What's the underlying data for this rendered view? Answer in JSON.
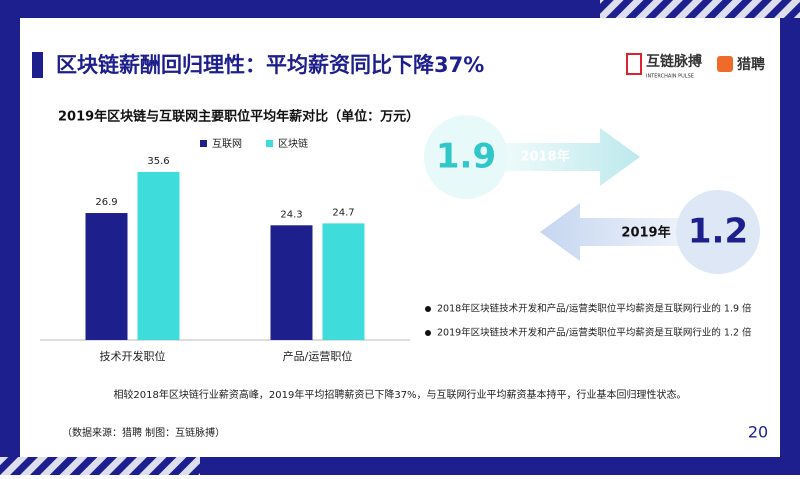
{
  "header": {
    "title": "区块链薪酬回归理性：平均薪资同比下降37%",
    "logo_name": "互链脉搏",
    "logo_sub": "INTERCHAIN PULSE",
    "partner": "猎聘"
  },
  "chart_data": {
    "type": "bar",
    "title": "2019年区块链与互联网主要职位平均年薪对比（单位：万元）",
    "categories": [
      "技术开发职位",
      "产品/运营职位"
    ],
    "series": [
      {
        "name": "互联网",
        "color": "#1d1f8c",
        "values": [
          26.9,
          24.3
        ]
      },
      {
        "name": "区块链",
        "color": "#3fdcdc",
        "values": [
          35.6,
          24.7
        ]
      }
    ]
  },
  "ratios": [
    {
      "value": "1.9",
      "year": "2018年"
    },
    {
      "value": "1.2",
      "year": "2019年"
    }
  ],
  "bullets": [
    "2018年区块链技术开发和产品/运营类职位平均薪资是互联网行业的 1.9 倍",
    "2019年区块链技术开发和产品/运营类职位平均薪资是互联网行业的 1.2 倍"
  ],
  "summary": "相较2018年区块链行业薪资高峰，2019年平均招聘薪资已下降37%，与互联网行业平均薪资基本持平，行业基本回归理性状态。",
  "source": "（数据来源：猎聘    制图：互链脉搏）",
  "page_number": "20"
}
